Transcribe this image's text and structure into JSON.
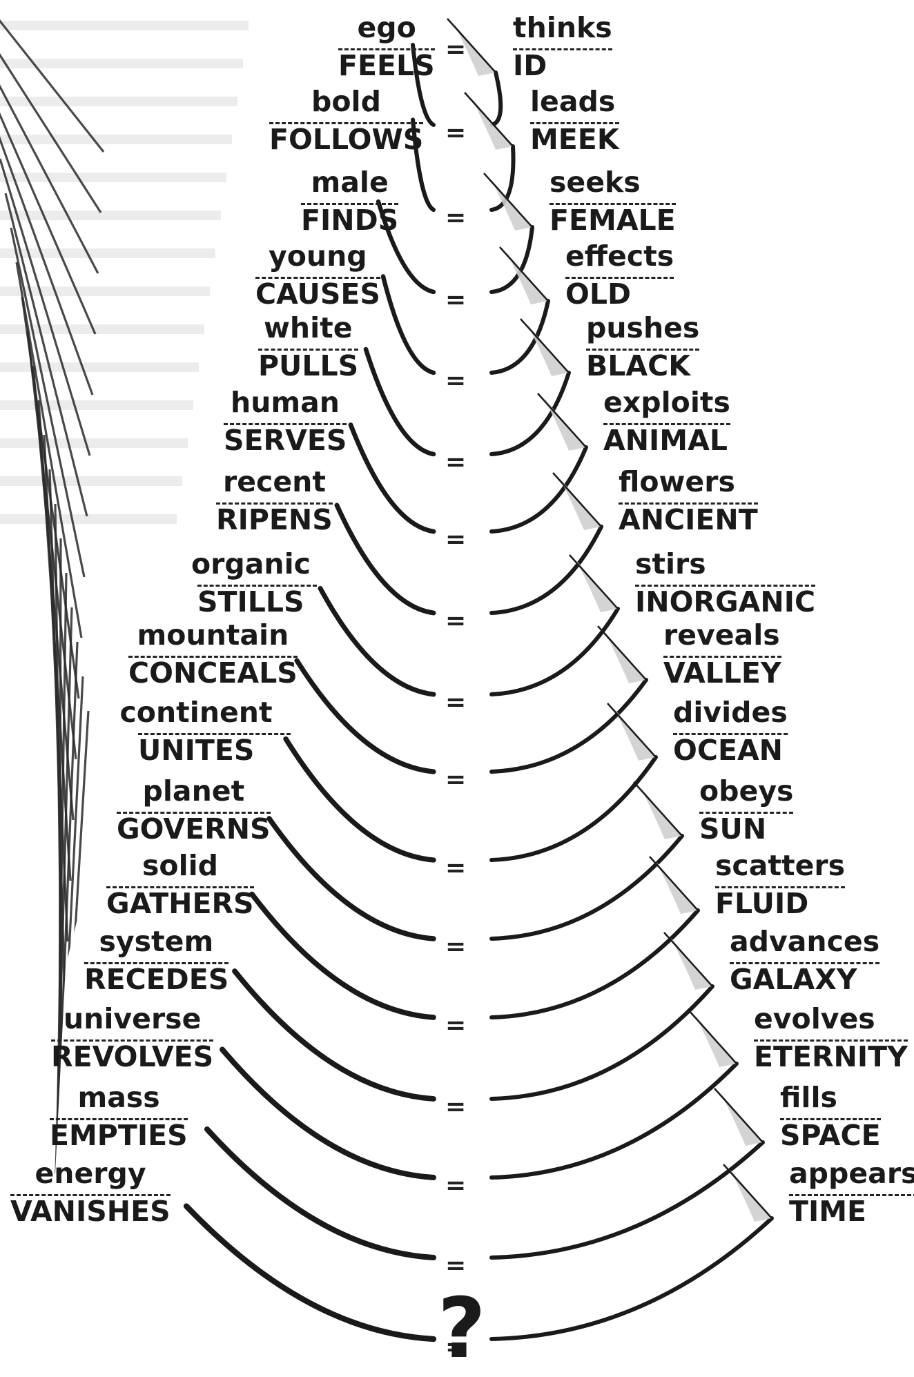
{
  "pairs": [
    {
      "left_top": "ego",
      "left_bottom": "FEELS",
      "right_top": "thinks",
      "right_bottom": "ID"
    },
    {
      "left_top": "bold",
      "left_bottom": "FOLLOWS",
      "right_top": "leads",
      "right_bottom": "MEEK"
    },
    {
      "left_top": "male",
      "left_bottom": "FINDS",
      "right_top": "seeks",
      "right_bottom": "FEMALE"
    },
    {
      "left_top": "young",
      "left_bottom": "CAUSES",
      "right_top": "effects",
      "right_bottom": "OLD"
    },
    {
      "left_top": "white",
      "left_bottom": "PULLS",
      "right_top": "pushes",
      "right_bottom": "BLACK"
    },
    {
      "left_top": "human",
      "left_bottom": "SERVES",
      "right_top": "exploits",
      "right_bottom": "ANIMAL"
    },
    {
      "left_top": "recent",
      "left_bottom": "RIPENS",
      "right_top": "flowers",
      "right_bottom": "ANCIENT"
    },
    {
      "left_top": "organic",
      "left_bottom": "STILLS",
      "right_top": "stirs",
      "right_bottom": "INORGANIC"
    },
    {
      "left_top": "mountain",
      "left_bottom": "CONCEALS",
      "right_top": "reveals",
      "right_bottom": "VALLEY"
    },
    {
      "left_top": "continent",
      "left_bottom": "UNITES",
      "right_top": "divides",
      "right_bottom": "OCEAN"
    },
    {
      "left_top": "planet",
      "left_bottom": "GOVERNS",
      "right_top": "obeys",
      "right_bottom": "SUN"
    },
    {
      "left_top": "solid",
      "left_bottom": "GATHERS",
      "right_top": "scatters",
      "right_bottom": "FLUID"
    },
    {
      "left_top": "system",
      "left_bottom": "RECEDES",
      "right_top": "advances",
      "right_bottom": "GALAXY"
    },
    {
      "left_top": "universe",
      "left_bottom": "REVOLVES",
      "right_top": "evolves",
      "right_bottom": "ETERNITY"
    },
    {
      "left_top": "mass",
      "left_bottom": "EMPTIES",
      "right_top": "fills",
      "right_bottom": "SPACE"
    },
    {
      "left_top": "energy",
      "left_bottom": "VANISHES",
      "right_top": "appears",
      "right_bottom": "TIME"
    }
  ],
  "equals_sign": "=",
  "final_mark": "?",
  "colors": {
    "ink": "#1a1a1a",
    "background": "#ffffff",
    "faded_text": "#c8c8c8",
    "arc_shadow": "#cfcfcf"
  }
}
